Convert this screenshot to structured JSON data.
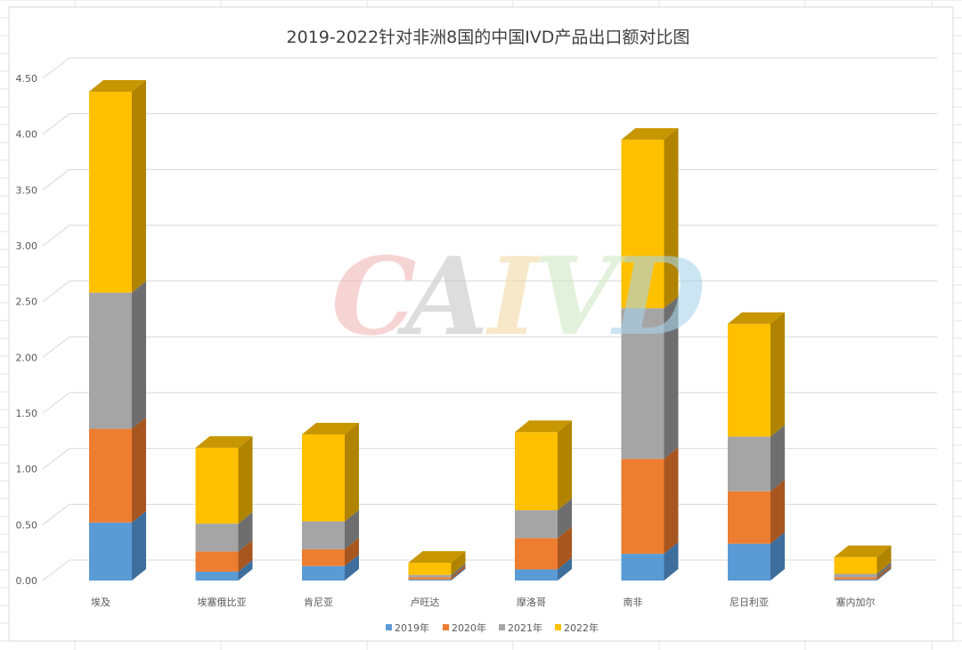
{
  "chart_data": {
    "type": "bar",
    "stacked": true,
    "three_d": true,
    "title": "2019-2022针对非洲8国的中国IVD产品出口额对比图",
    "xlabel": "",
    "ylabel": "",
    "categories": [
      "埃及",
      "埃塞俄比亚",
      "肯尼亚",
      "卢旺达",
      "摩洛哥",
      "南非",
      "尼日利亚",
      "塞内加尔"
    ],
    "series": [
      {
        "name": "2019年",
        "color": "#5b9bd5",
        "side": "#3d6e9c",
        "top": "#4a82b8",
        "values": [
          0.52,
          0.08,
          0.13,
          0.01,
          0.1,
          0.24,
          0.33,
          0.01
        ]
      },
      {
        "name": "2020年",
        "color": "#ed7d31",
        "side": "#a85620",
        "top": "#c86a28",
        "values": [
          0.84,
          0.18,
          0.15,
          0.02,
          0.28,
          0.85,
          0.47,
          0.02
        ]
      },
      {
        "name": "2021年",
        "color": "#a5a5a5",
        "side": "#6e6e6e",
        "top": "#8a8a8a",
        "values": [
          1.22,
          0.25,
          0.25,
          0.02,
          0.25,
          1.35,
          0.49,
          0.03
        ]
      },
      {
        "name": "2022年",
        "color": "#ffc000",
        "side": "#b08400",
        "top": "#c79600",
        "values": [
          1.8,
          0.68,
          0.78,
          0.11,
          0.7,
          1.51,
          1.01,
          0.15
        ]
      }
    ],
    "ylim": [
      0,
      4.5
    ],
    "yticks": [
      "0.00",
      "0.50",
      "1.00",
      "1.50",
      "2.00",
      "2.50",
      "3.00",
      "3.50",
      "4.00",
      "4.50"
    ],
    "legend_position": "bottom",
    "grid": true
  },
  "watermark": {
    "letters": [
      {
        "char": "C",
        "color": "#f2b8b8"
      },
      {
        "char": "A",
        "color": "#c8c8c8"
      },
      {
        "char": "I",
        "color": "#f5d9a8"
      },
      {
        "char": "V",
        "color": "#cfe8c4"
      },
      {
        "char": "D",
        "color": "#a9d4ea"
      }
    ]
  }
}
